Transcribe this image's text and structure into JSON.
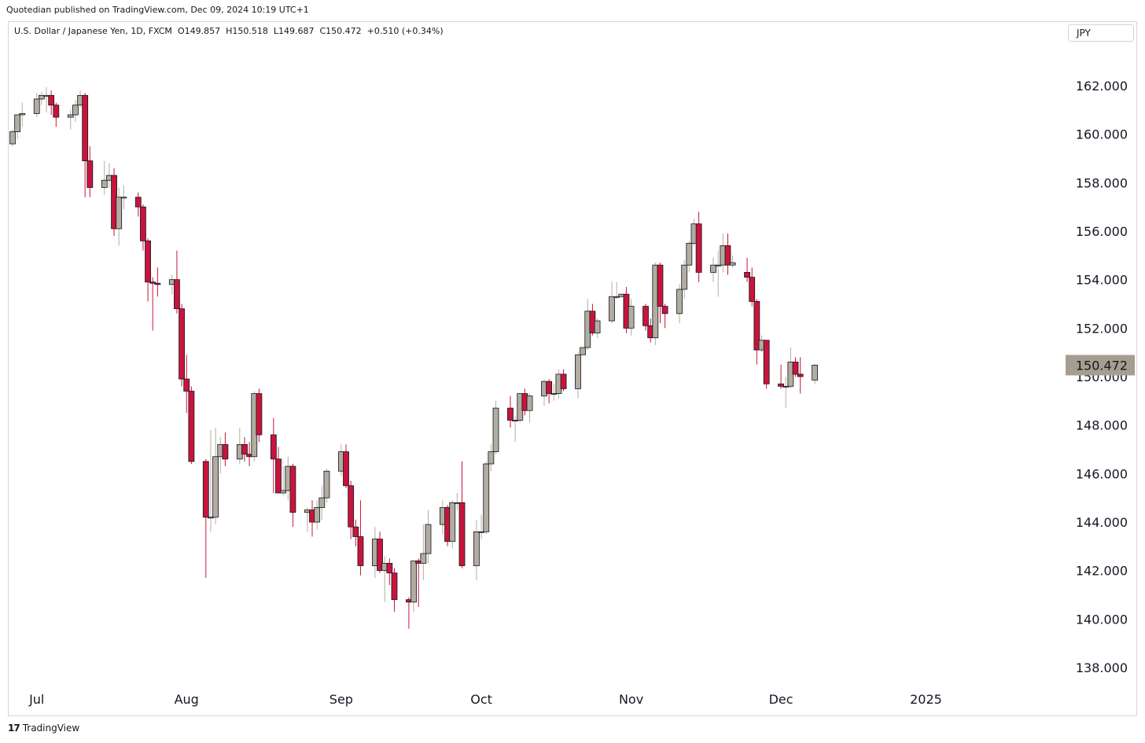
{
  "header": {
    "published_text": "Quotedian published on TradingView.com, Dec 09, 2024 10:19 UTC+1"
  },
  "legend": {
    "symbol": "U.S. Dollar / Japanese Yen, 1D, FXCM",
    "open": "O149.857",
    "high": "H150.518",
    "low": "L149.687",
    "close": "C150.472",
    "change": "+0.510 (+0.34%)"
  },
  "currency_button": "JPY",
  "footer": {
    "logo_icon": "tradingview-logo-icon",
    "logo_text": "TradingView"
  },
  "colors": {
    "up": "#b2aca1",
    "down": "#c8143c",
    "last_price_bg": "#a69d91",
    "border": "#d1d4dc"
  },
  "chart_data": {
    "type": "candlestick",
    "y_axis_ticks": [
      "162.000",
      "160.000",
      "158.000",
      "156.000",
      "154.000",
      "152.000",
      "150.000",
      "148.000",
      "146.000",
      "144.000",
      "142.000",
      "140.000",
      "138.000"
    ],
    "y_range": [
      137.5,
      163.0
    ],
    "x_axis_labels": [
      {
        "label": "Jul",
        "date": "2024-07-01"
      },
      {
        "label": "Aug",
        "date": "2024-08-01"
      },
      {
        "label": "Sep",
        "date": "2024-09-02"
      },
      {
        "label": "Oct",
        "date": "2024-10-01"
      },
      {
        "label": "Nov",
        "date": "2024-11-01"
      },
      {
        "label": "Dec",
        "date": "2024-12-02"
      },
      {
        "label": "2025",
        "date": "2025-01-01"
      }
    ],
    "last_price": "150.472",
    "candles": [
      {
        "d": "2024-06-26",
        "o": 159.6,
        "h": 160.2,
        "l": 159.5,
        "c": 160.1
      },
      {
        "d": "2024-06-27",
        "o": 160.1,
        "h": 160.6,
        "l": 159.8,
        "c": 160.8
      },
      {
        "d": "2024-06-28",
        "o": 160.8,
        "h": 161.3,
        "l": 160.3,
        "c": 160.85
      },
      {
        "d": "2024-07-01",
        "o": 160.85,
        "h": 161.7,
        "l": 160.7,
        "c": 161.45
      },
      {
        "d": "2024-07-02",
        "o": 161.45,
        "h": 161.75,
        "l": 161.2,
        "c": 161.6
      },
      {
        "d": "2024-07-03",
        "o": 161.6,
        "h": 161.95,
        "l": 160.9,
        "c": 161.6
      },
      {
        "d": "2024-07-04",
        "o": 161.6,
        "h": 161.8,
        "l": 160.8,
        "c": 161.2
      },
      {
        "d": "2024-07-05",
        "o": 161.2,
        "h": 161.3,
        "l": 160.3,
        "c": 160.7
      },
      {
        "d": "2024-07-08",
        "o": 160.7,
        "h": 161.0,
        "l": 160.2,
        "c": 160.8
      },
      {
        "d": "2024-07-09",
        "o": 160.8,
        "h": 161.4,
        "l": 160.5,
        "c": 161.2
      },
      {
        "d": "2024-07-10",
        "o": 161.2,
        "h": 161.8,
        "l": 161.1,
        "c": 161.6
      },
      {
        "d": "2024-07-11",
        "o": 161.6,
        "h": 161.7,
        "l": 157.4,
        "c": 158.9
      },
      {
        "d": "2024-07-12",
        "o": 158.9,
        "h": 159.5,
        "l": 157.4,
        "c": 157.8
      },
      {
        "d": "2024-07-15",
        "o": 157.8,
        "h": 158.9,
        "l": 157.5,
        "c": 158.1
      },
      {
        "d": "2024-07-16",
        "o": 158.1,
        "h": 158.8,
        "l": 157.8,
        "c": 158.3
      },
      {
        "d": "2024-07-17",
        "o": 158.3,
        "h": 158.6,
        "l": 155.8,
        "c": 156.1
      },
      {
        "d": "2024-07-18",
        "o": 156.1,
        "h": 157.8,
        "l": 155.4,
        "c": 157.4
      },
      {
        "d": "2024-07-19",
        "o": 157.4,
        "h": 157.9,
        "l": 156.9,
        "c": 157.4
      },
      {
        "d": "2024-07-22",
        "o": 157.4,
        "h": 157.6,
        "l": 156.6,
        "c": 157.0
      },
      {
        "d": "2024-07-23",
        "o": 157.0,
        "h": 157.1,
        "l": 155.2,
        "c": 155.6
      },
      {
        "d": "2024-07-24",
        "o": 155.6,
        "h": 155.7,
        "l": 153.1,
        "c": 153.9
      },
      {
        "d": "2024-07-25",
        "o": 153.9,
        "h": 154.1,
        "l": 151.9,
        "c": 153.85
      },
      {
        "d": "2024-07-26",
        "o": 153.85,
        "h": 154.5,
        "l": 153.3,
        "c": 153.8
      },
      {
        "d": "2024-07-29",
        "o": 153.8,
        "h": 154.2,
        "l": 153.4,
        "c": 154.0
      },
      {
        "d": "2024-07-30",
        "o": 154.0,
        "h": 155.2,
        "l": 152.6,
        "c": 152.8
      },
      {
        "d": "2024-07-31",
        "o": 152.8,
        "h": 153.0,
        "l": 149.6,
        "c": 149.9
      },
      {
        "d": "2024-08-01",
        "o": 149.9,
        "h": 150.9,
        "l": 148.5,
        "c": 149.4
      },
      {
        "d": "2024-08-02",
        "o": 149.4,
        "h": 149.6,
        "l": 146.4,
        "c": 146.5
      },
      {
        "d": "2024-08-05",
        "o": 146.5,
        "h": 146.6,
        "l": 141.7,
        "c": 144.2
      },
      {
        "d": "2024-08-06",
        "o": 144.2,
        "h": 147.8,
        "l": 143.6,
        "c": 144.2
      },
      {
        "d": "2024-08-07",
        "o": 144.2,
        "h": 147.9,
        "l": 143.9,
        "c": 146.7
      },
      {
        "d": "2024-08-08",
        "o": 146.7,
        "h": 147.5,
        "l": 146.0,
        "c": 147.2
      },
      {
        "d": "2024-08-09",
        "o": 147.2,
        "h": 147.7,
        "l": 146.3,
        "c": 146.6
      },
      {
        "d": "2024-08-12",
        "o": 146.6,
        "h": 147.9,
        "l": 146.4,
        "c": 147.2
      },
      {
        "d": "2024-08-13",
        "o": 147.2,
        "h": 147.5,
        "l": 146.5,
        "c": 146.8
      },
      {
        "d": "2024-08-14",
        "o": 146.8,
        "h": 147.3,
        "l": 146.3,
        "c": 146.7
      },
      {
        "d": "2024-08-15",
        "o": 146.7,
        "h": 149.4,
        "l": 146.5,
        "c": 149.3
      },
      {
        "d": "2024-08-16",
        "o": 149.3,
        "h": 149.5,
        "l": 147.3,
        "c": 147.6
      },
      {
        "d": "2024-08-19",
        "o": 147.6,
        "h": 148.3,
        "l": 145.2,
        "c": 146.6
      },
      {
        "d": "2024-08-20",
        "o": 146.6,
        "h": 147.1,
        "l": 145.2,
        "c": 145.2
      },
      {
        "d": "2024-08-21",
        "o": 145.2,
        "h": 146.3,
        "l": 145.1,
        "c": 145.3
      },
      {
        "d": "2024-08-22",
        "o": 145.3,
        "h": 146.7,
        "l": 144.9,
        "c": 146.3
      },
      {
        "d": "2024-08-23",
        "o": 146.3,
        "h": 146.4,
        "l": 143.8,
        "c": 144.4
      },
      {
        "d": "2024-08-26",
        "o": 144.4,
        "h": 144.6,
        "l": 143.6,
        "c": 144.5
      },
      {
        "d": "2024-08-27",
        "o": 144.5,
        "h": 144.9,
        "l": 143.4,
        "c": 144.0
      },
      {
        "d": "2024-08-28",
        "o": 144.0,
        "h": 144.9,
        "l": 143.7,
        "c": 144.6
      },
      {
        "d": "2024-08-29",
        "o": 144.6,
        "h": 145.5,
        "l": 144.1,
        "c": 145.0
      },
      {
        "d": "2024-08-30",
        "o": 145.0,
        "h": 146.2,
        "l": 144.8,
        "c": 146.1
      },
      {
        "d": "2024-09-02",
        "o": 146.1,
        "h": 147.2,
        "l": 145.9,
        "c": 146.9
      },
      {
        "d": "2024-09-03",
        "o": 146.9,
        "h": 147.2,
        "l": 145.4,
        "c": 145.5
      },
      {
        "d": "2024-09-04",
        "o": 145.5,
        "h": 145.7,
        "l": 143.3,
        "c": 143.8
      },
      {
        "d": "2024-09-05",
        "o": 143.8,
        "h": 144.1,
        "l": 143.0,
        "c": 143.4
      },
      {
        "d": "2024-09-06",
        "o": 143.4,
        "h": 144.9,
        "l": 141.8,
        "c": 142.2
      },
      {
        "d": "2024-09-09",
        "o": 142.2,
        "h": 143.8,
        "l": 141.7,
        "c": 143.3
      },
      {
        "d": "2024-09-10",
        "o": 143.3,
        "h": 143.6,
        "l": 141.9,
        "c": 142.0
      },
      {
        "d": "2024-09-11",
        "o": 142.0,
        "h": 142.6,
        "l": 140.7,
        "c": 142.3
      },
      {
        "d": "2024-09-12",
        "o": 142.3,
        "h": 142.5,
        "l": 141.4,
        "c": 141.9
      },
      {
        "d": "2024-09-13",
        "o": 141.9,
        "h": 142.1,
        "l": 140.3,
        "c": 140.8
      },
      {
        "d": "2024-09-16",
        "o": 140.8,
        "h": 140.9,
        "l": 139.6,
        "c": 140.7
      },
      {
        "d": "2024-09-17",
        "o": 140.7,
        "h": 142.4,
        "l": 140.3,
        "c": 142.4
      },
      {
        "d": "2024-09-18",
        "o": 142.4,
        "h": 142.5,
        "l": 140.5,
        "c": 142.3
      },
      {
        "d": "2024-09-19",
        "o": 142.3,
        "h": 143.9,
        "l": 141.6,
        "c": 142.7
      },
      {
        "d": "2024-09-20",
        "o": 142.7,
        "h": 144.5,
        "l": 142.3,
        "c": 143.9
      },
      {
        "d": "2024-09-23",
        "o": 143.9,
        "h": 144.9,
        "l": 143.5,
        "c": 144.6
      },
      {
        "d": "2024-09-24",
        "o": 144.6,
        "h": 144.7,
        "l": 143.0,
        "c": 143.2
      },
      {
        "d": "2024-09-25",
        "o": 143.2,
        "h": 144.9,
        "l": 142.9,
        "c": 144.8
      },
      {
        "d": "2024-09-26",
        "o": 144.8,
        "h": 145.2,
        "l": 144.5,
        "c": 144.8
      },
      {
        "d": "2024-09-27",
        "o": 144.8,
        "h": 146.5,
        "l": 142.1,
        "c": 142.2
      },
      {
        "d": "2024-09-30",
        "o": 142.2,
        "h": 144.1,
        "l": 141.6,
        "c": 143.6
      },
      {
        "d": "2024-10-01",
        "o": 143.6,
        "h": 144.3,
        "l": 143.3,
        "c": 143.6
      },
      {
        "d": "2024-10-02",
        "o": 143.6,
        "h": 146.5,
        "l": 143.5,
        "c": 146.4
      },
      {
        "d": "2024-10-03",
        "o": 146.4,
        "h": 147.2,
        "l": 146.1,
        "c": 146.9
      },
      {
        "d": "2024-10-04",
        "o": 146.9,
        "h": 149.0,
        "l": 146.8,
        "c": 148.7
      },
      {
        "d": "2024-10-07",
        "o": 148.7,
        "h": 149.2,
        "l": 147.9,
        "c": 148.2
      },
      {
        "d": "2024-10-08",
        "o": 148.2,
        "h": 148.4,
        "l": 147.3,
        "c": 148.2
      },
      {
        "d": "2024-10-09",
        "o": 148.2,
        "h": 149.3,
        "l": 148.1,
        "c": 149.3
      },
      {
        "d": "2024-10-10",
        "o": 149.3,
        "h": 149.5,
        "l": 148.4,
        "c": 148.6
      },
      {
        "d": "2024-10-11",
        "o": 148.6,
        "h": 149.3,
        "l": 148.1,
        "c": 149.2
      },
      {
        "d": "2024-10-14",
        "o": 149.2,
        "h": 149.9,
        "l": 148.8,
        "c": 149.8
      },
      {
        "d": "2024-10-15",
        "o": 149.8,
        "h": 149.9,
        "l": 148.9,
        "c": 149.3
      },
      {
        "d": "2024-10-16",
        "o": 149.3,
        "h": 149.7,
        "l": 149.0,
        "c": 149.3
      },
      {
        "d": "2024-10-17",
        "o": 149.3,
        "h": 150.3,
        "l": 149.1,
        "c": 150.1
      },
      {
        "d": "2024-10-18",
        "o": 150.1,
        "h": 150.3,
        "l": 149.4,
        "c": 149.5
      },
      {
        "d": "2024-10-21",
        "o": 149.5,
        "h": 151.0,
        "l": 149.1,
        "c": 150.9
      },
      {
        "d": "2024-10-22",
        "o": 150.9,
        "h": 151.2,
        "l": 150.9,
        "c": 151.2
      },
      {
        "d": "2024-10-23",
        "o": 151.2,
        "h": 153.2,
        "l": 151.1,
        "c": 152.7
      },
      {
        "d": "2024-10-24",
        "o": 152.7,
        "h": 153.0,
        "l": 151.7,
        "c": 151.8
      },
      {
        "d": "2024-10-25",
        "o": 151.8,
        "h": 152.4,
        "l": 151.6,
        "c": 152.3
      },
      {
        "d": "2024-10-28",
        "o": 152.3,
        "h": 153.9,
        "l": 152.2,
        "c": 153.3
      },
      {
        "d": "2024-10-29",
        "o": 153.3,
        "h": 153.9,
        "l": 153.2,
        "c": 153.3
      },
      {
        "d": "2024-10-30",
        "o": 153.3,
        "h": 153.4,
        "l": 153.3,
        "c": 153.4
      },
      {
        "d": "2024-10-31",
        "o": 153.4,
        "h": 153.7,
        "l": 151.8,
        "c": 152.0
      },
      {
        "d": "2024-11-01",
        "o": 152.0,
        "h": 153.2,
        "l": 151.7,
        "c": 152.9
      },
      {
        "d": "2024-11-04",
        "o": 152.9,
        "h": 153.0,
        "l": 151.9,
        "c": 152.1
      },
      {
        "d": "2024-11-05",
        "o": 152.1,
        "h": 152.4,
        "l": 151.4,
        "c": 151.6
      },
      {
        "d": "2024-11-06",
        "o": 151.6,
        "h": 154.7,
        "l": 151.3,
        "c": 154.6
      },
      {
        "d": "2024-11-07",
        "o": 154.6,
        "h": 154.7,
        "l": 152.2,
        "c": 152.9
      },
      {
        "d": "2024-11-08",
        "o": 152.9,
        "h": 153.0,
        "l": 152.0,
        "c": 152.6
      },
      {
        "d": "2024-11-11",
        "o": 152.6,
        "h": 153.8,
        "l": 152.2,
        "c": 153.6
      },
      {
        "d": "2024-11-12",
        "o": 153.6,
        "h": 154.8,
        "l": 153.2,
        "c": 154.6
      },
      {
        "d": "2024-11-13",
        "o": 154.6,
        "h": 155.6,
        "l": 154.3,
        "c": 155.5
      },
      {
        "d": "2024-11-14",
        "o": 155.5,
        "h": 156.5,
        "l": 155.4,
        "c": 156.3
      },
      {
        "d": "2024-11-15",
        "o": 156.3,
        "h": 156.8,
        "l": 153.9,
        "c": 154.3
      },
      {
        "d": "2024-11-18",
        "o": 154.3,
        "h": 154.9,
        "l": 153.9,
        "c": 154.6
      },
      {
        "d": "2024-11-19",
        "o": 154.6,
        "h": 155.2,
        "l": 153.3,
        "c": 154.6
      },
      {
        "d": "2024-11-20",
        "o": 154.6,
        "h": 155.9,
        "l": 154.3,
        "c": 155.4
      },
      {
        "d": "2024-11-21",
        "o": 155.4,
        "h": 155.9,
        "l": 154.2,
        "c": 154.6
      },
      {
        "d": "2024-11-22",
        "o": 154.6,
        "h": 155.0,
        "l": 154.5,
        "c": 154.7
      },
      {
        "d": "2024-11-25",
        "o": 154.3,
        "h": 154.9,
        "l": 153.9,
        "c": 154.1
      },
      {
        "d": "2024-11-26",
        "o": 154.1,
        "h": 154.5,
        "l": 152.9,
        "c": 153.1
      },
      {
        "d": "2024-11-27",
        "o": 153.1,
        "h": 153.2,
        "l": 150.5,
        "c": 151.1
      },
      {
        "d": "2024-11-28",
        "o": 151.1,
        "h": 151.7,
        "l": 151.0,
        "c": 151.5
      },
      {
        "d": "2024-11-29",
        "o": 151.5,
        "h": 151.5,
        "l": 149.5,
        "c": 149.7
      },
      {
        "d": "2024-12-02",
        "o": 149.7,
        "h": 150.5,
        "l": 149.5,
        "c": 149.6
      },
      {
        "d": "2024-12-03",
        "o": 149.6,
        "h": 150.0,
        "l": 148.7,
        "c": 149.6
      },
      {
        "d": "2024-12-04",
        "o": 149.6,
        "h": 151.2,
        "l": 149.5,
        "c": 150.6
      },
      {
        "d": "2024-12-05",
        "o": 150.6,
        "h": 150.8,
        "l": 150.0,
        "c": 150.1
      },
      {
        "d": "2024-12-06",
        "o": 150.1,
        "h": 150.8,
        "l": 149.3,
        "c": 150.0
      },
      {
        "d": "2024-12-09",
        "o": 149.857,
        "h": 150.518,
        "l": 149.687,
        "c": 150.472
      }
    ]
  }
}
